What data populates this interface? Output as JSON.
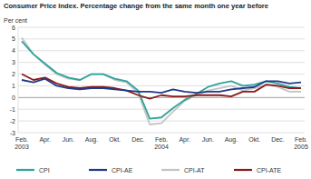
{
  "chart_data": {
    "type": "line",
    "title": "Consumer Price Index. Percentage change from the same month one year before",
    "y_label": "Per cent",
    "categories": [
      "Feb.\n2003",
      null,
      "Apr.",
      null,
      "Jun.",
      null,
      "Aug.",
      null,
      "Okt.",
      null,
      "Dec.",
      null,
      "Feb.\n2004",
      null,
      "Apr.",
      null,
      "Jun.",
      null,
      "Aug.",
      null,
      "Okt.",
      null,
      "Dec.",
      null,
      "Feb.\n2005"
    ],
    "series": [
      {
        "name": "CPI",
        "color": "#2fa39c",
        "values": [
          4.8,
          3.7,
          2.9,
          2.1,
          1.7,
          1.5,
          2.0,
          2.0,
          1.6,
          1.4,
          0.6,
          -1.8,
          -1.7,
          -0.9,
          -0.2,
          0.3,
          0.9,
          1.2,
          1.4,
          1.0,
          1.1,
          1.4,
          1.2,
          0.9,
          0.8
        ]
      },
      {
        "name": "CPI-AE",
        "color": "#1f3a8a",
        "values": [
          1.5,
          1.3,
          1.6,
          1.0,
          0.8,
          0.7,
          0.8,
          0.8,
          0.7,
          0.6,
          0.5,
          0.5,
          0.4,
          0.7,
          0.5,
          0.4,
          0.5,
          0.5,
          0.7,
          0.8,
          0.9,
          1.4,
          1.4,
          1.2,
          1.3
        ]
      },
      {
        "name": "CPI-AT",
        "color": "#c4c4c4",
        "values": [
          5.1,
          3.7,
          2.8,
          2.0,
          1.6,
          1.5,
          2.0,
          2.0,
          1.5,
          1.3,
          0.4,
          -2.3,
          -2.2,
          -1.2,
          -0.3,
          0.2,
          0.6,
          0.8,
          1.0,
          0.6,
          0.8,
          1.1,
          0.9,
          0.5,
          0.5
        ]
      },
      {
        "name": "CPI-ATE",
        "color": "#8b1a1a",
        "values": [
          2.0,
          1.5,
          1.7,
          1.2,
          0.9,
          0.8,
          0.9,
          0.9,
          0.8,
          0.6,
          0.2,
          -0.1,
          0.2,
          0.1,
          0.1,
          0.2,
          0.2,
          0.2,
          0.1,
          0.5,
          0.5,
          1.1,
          1.0,
          0.8,
          0.8
        ]
      }
    ],
    "ylim": [
      -3,
      6
    ],
    "yticks": [
      -3,
      -2,
      -1,
      0,
      1,
      2,
      3,
      4,
      5,
      6
    ],
    "grid": true,
    "legend": "bottom"
  }
}
